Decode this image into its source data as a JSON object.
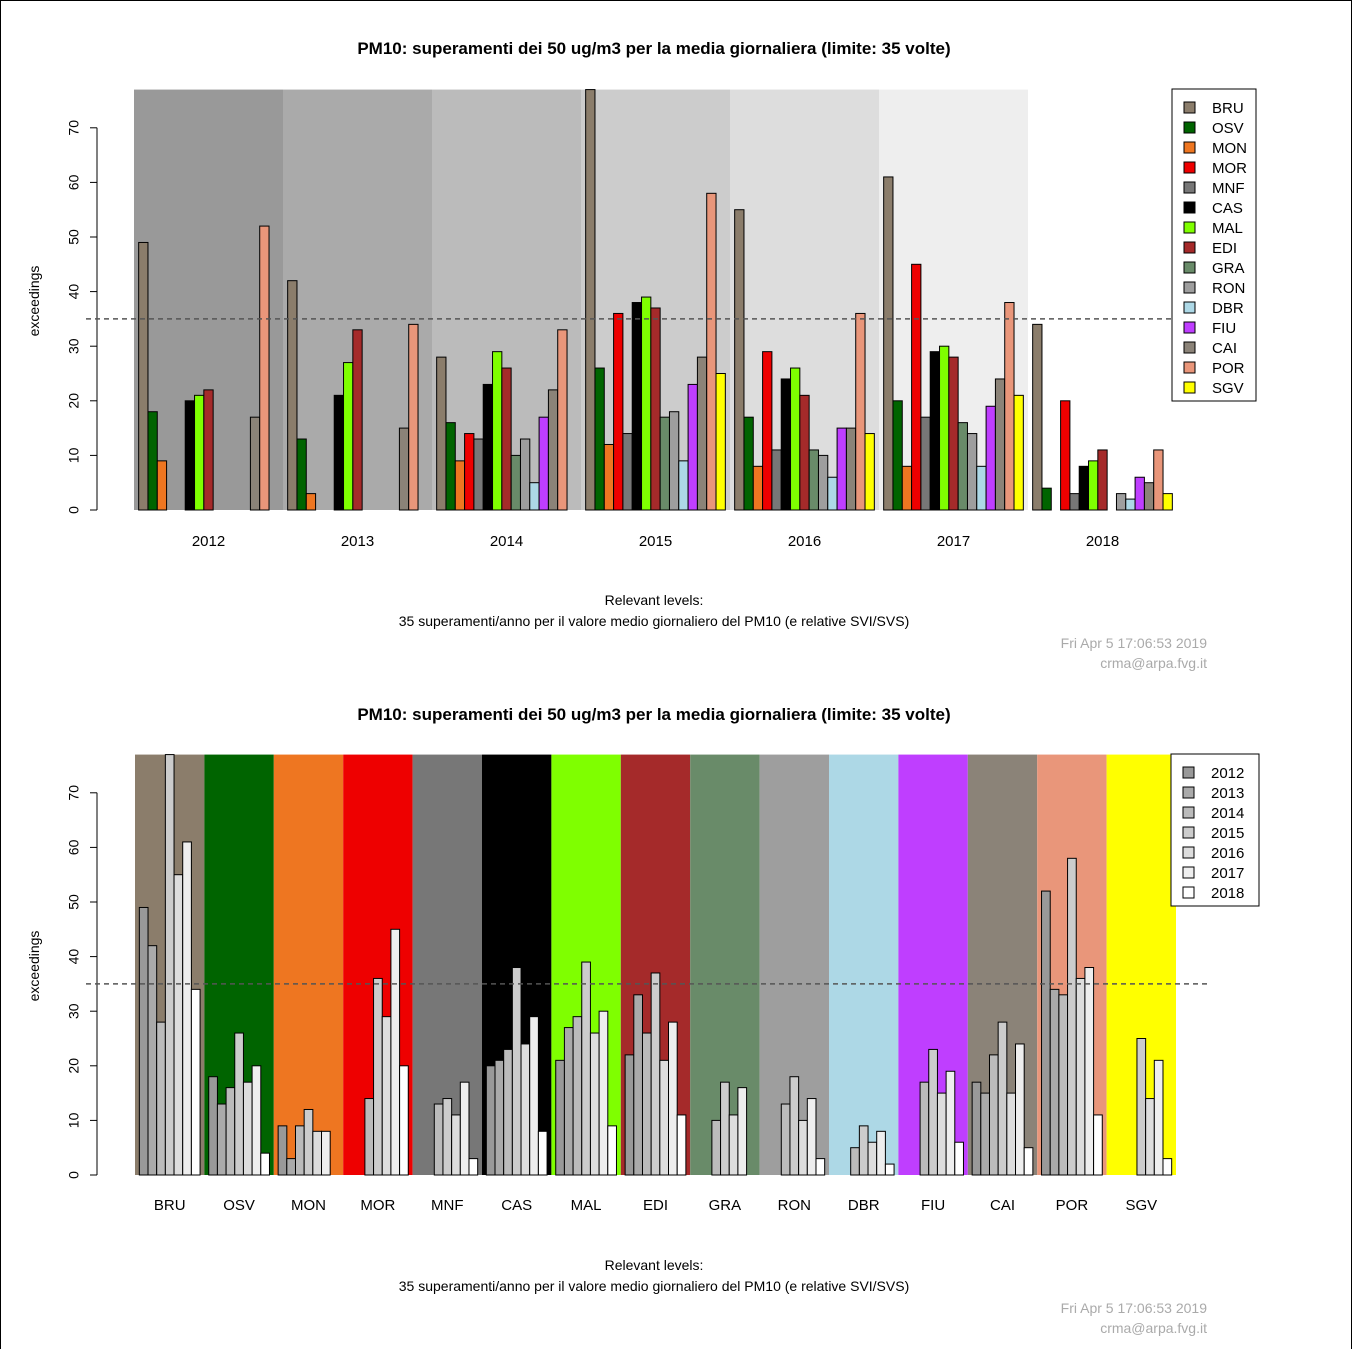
{
  "colors": {
    "BRU": "#8b7d6b",
    "OSV": "#006400",
    "MON": "#ee7621",
    "MOR": "#ee0000",
    "MNF": "#777777",
    "CAS": "#000000",
    "MAL": "#7fff00",
    "EDI": "#a52a2a",
    "GRA": "#698b69",
    "RON": "#9e9e9e",
    "DBR": "#add8e6",
    "FIU": "#bf3eff",
    "CAI": "#8b8378",
    "POR": "#e9967a",
    "SGV": "#ffff00",
    "years": {
      "2012": "#999999",
      "2013": "#aaaaaa",
      "2014": "#bbbbbb",
      "2015": "#cccccc",
      "2016": "#dddddd",
      "2017": "#eeeeee",
      "2018": "#ffffff"
    }
  },
  "footer": {
    "timestamp": "Fri Apr  5 17:06:53 2019",
    "email": "crma@arpa.fvg.it"
  },
  "chart_data": [
    {
      "type": "bar",
      "title": "PM10: superamenti dei 50 ug/m3 per la media giornaliera (limite: 35 volte)",
      "ylabel": "exceedings",
      "xlabel": "",
      "ylim": [
        0,
        77
      ],
      "yticks": [
        0,
        10,
        20,
        30,
        40,
        50,
        60,
        70
      ],
      "reference_line": 35,
      "legend_position": "top-right",
      "note_line1": "Relevant levels:",
      "note_line2": "35 superamenti/anno per il valore medio giornaliero del PM10 (e relative SVI/SVS)",
      "categories": [
        "2012",
        "2013",
        "2014",
        "2015",
        "2016",
        "2017",
        "2018"
      ],
      "series": [
        {
          "name": "BRU",
          "values": [
            49,
            42,
            28,
            77,
            55,
            61,
            34
          ]
        },
        {
          "name": "OSV",
          "values": [
            18,
            13,
            16,
            26,
            17,
            20,
            4
          ]
        },
        {
          "name": "MON",
          "values": [
            9,
            3,
            9,
            12,
            8,
            8,
            0
          ]
        },
        {
          "name": "MOR",
          "values": [
            null,
            null,
            14,
            36,
            29,
            45,
            20
          ]
        },
        {
          "name": "MNF",
          "values": [
            null,
            null,
            13,
            14,
            11,
            17,
            3
          ]
        },
        {
          "name": "CAS",
          "values": [
            20,
            21,
            23,
            38,
            24,
            29,
            8
          ]
        },
        {
          "name": "MAL",
          "values": [
            21,
            27,
            29,
            39,
            26,
            30,
            9
          ]
        },
        {
          "name": "EDI",
          "values": [
            22,
            33,
            26,
            37,
            21,
            28,
            11
          ]
        },
        {
          "name": "GRA",
          "values": [
            null,
            null,
            10,
            17,
            11,
            16,
            null
          ]
        },
        {
          "name": "RON",
          "values": [
            null,
            null,
            13,
            18,
            10,
            14,
            3
          ]
        },
        {
          "name": "DBR",
          "values": [
            null,
            null,
            5,
            9,
            6,
            8,
            2
          ]
        },
        {
          "name": "FIU",
          "values": [
            null,
            null,
            17,
            23,
            15,
            19,
            6
          ]
        },
        {
          "name": "CAI",
          "values": [
            17,
            15,
            22,
            28,
            15,
            24,
            5
          ]
        },
        {
          "name": "POR",
          "values": [
            52,
            34,
            33,
            58,
            36,
            38,
            11
          ]
        },
        {
          "name": "SGV",
          "values": [
            null,
            null,
            null,
            25,
            14,
            21,
            3
          ]
        }
      ]
    },
    {
      "type": "bar",
      "title": "PM10: superamenti dei 50 ug/m3 per la media giornaliera (limite: 35 volte)",
      "ylabel": "exceedings",
      "xlabel": "",
      "ylim": [
        0,
        77
      ],
      "yticks": [
        0,
        10,
        20,
        30,
        40,
        50,
        60,
        70
      ],
      "reference_line": 35,
      "legend_position": "top-right",
      "note_line1": "Relevant levels:",
      "note_line2": "35 superamenti/anno per il valore medio giornaliero del PM10 (e relative SVI/SVS)",
      "categories": [
        "BRU",
        "OSV",
        "MON",
        "MOR",
        "MNF",
        "CAS",
        "MAL",
        "EDI",
        "GRA",
        "RON",
        "DBR",
        "FIU",
        "CAI",
        "POR",
        "SGV"
      ],
      "series": [
        {
          "name": "2012",
          "values": [
            49,
            18,
            9,
            null,
            null,
            20,
            21,
            22,
            null,
            null,
            null,
            null,
            17,
            52,
            null
          ]
        },
        {
          "name": "2013",
          "values": [
            42,
            13,
            3,
            null,
            null,
            21,
            27,
            33,
            null,
            null,
            null,
            null,
            15,
            34,
            null
          ]
        },
        {
          "name": "2014",
          "values": [
            28,
            16,
            9,
            14,
            13,
            23,
            29,
            26,
            10,
            13,
            5,
            17,
            22,
            33,
            null
          ]
        },
        {
          "name": "2015",
          "values": [
            77,
            26,
            12,
            36,
            14,
            38,
            39,
            37,
            17,
            18,
            9,
            23,
            28,
            58,
            25
          ]
        },
        {
          "name": "2016",
          "values": [
            55,
            17,
            8,
            29,
            11,
            24,
            26,
            21,
            11,
            10,
            6,
            15,
            15,
            36,
            14
          ]
        },
        {
          "name": "2017",
          "values": [
            61,
            20,
            8,
            45,
            17,
            29,
            30,
            28,
            16,
            14,
            8,
            19,
            24,
            38,
            21
          ]
        },
        {
          "name": "2018",
          "values": [
            34,
            4,
            0,
            20,
            3,
            8,
            9,
            11,
            null,
            3,
            2,
            6,
            5,
            11,
            3
          ]
        }
      ]
    }
  ]
}
